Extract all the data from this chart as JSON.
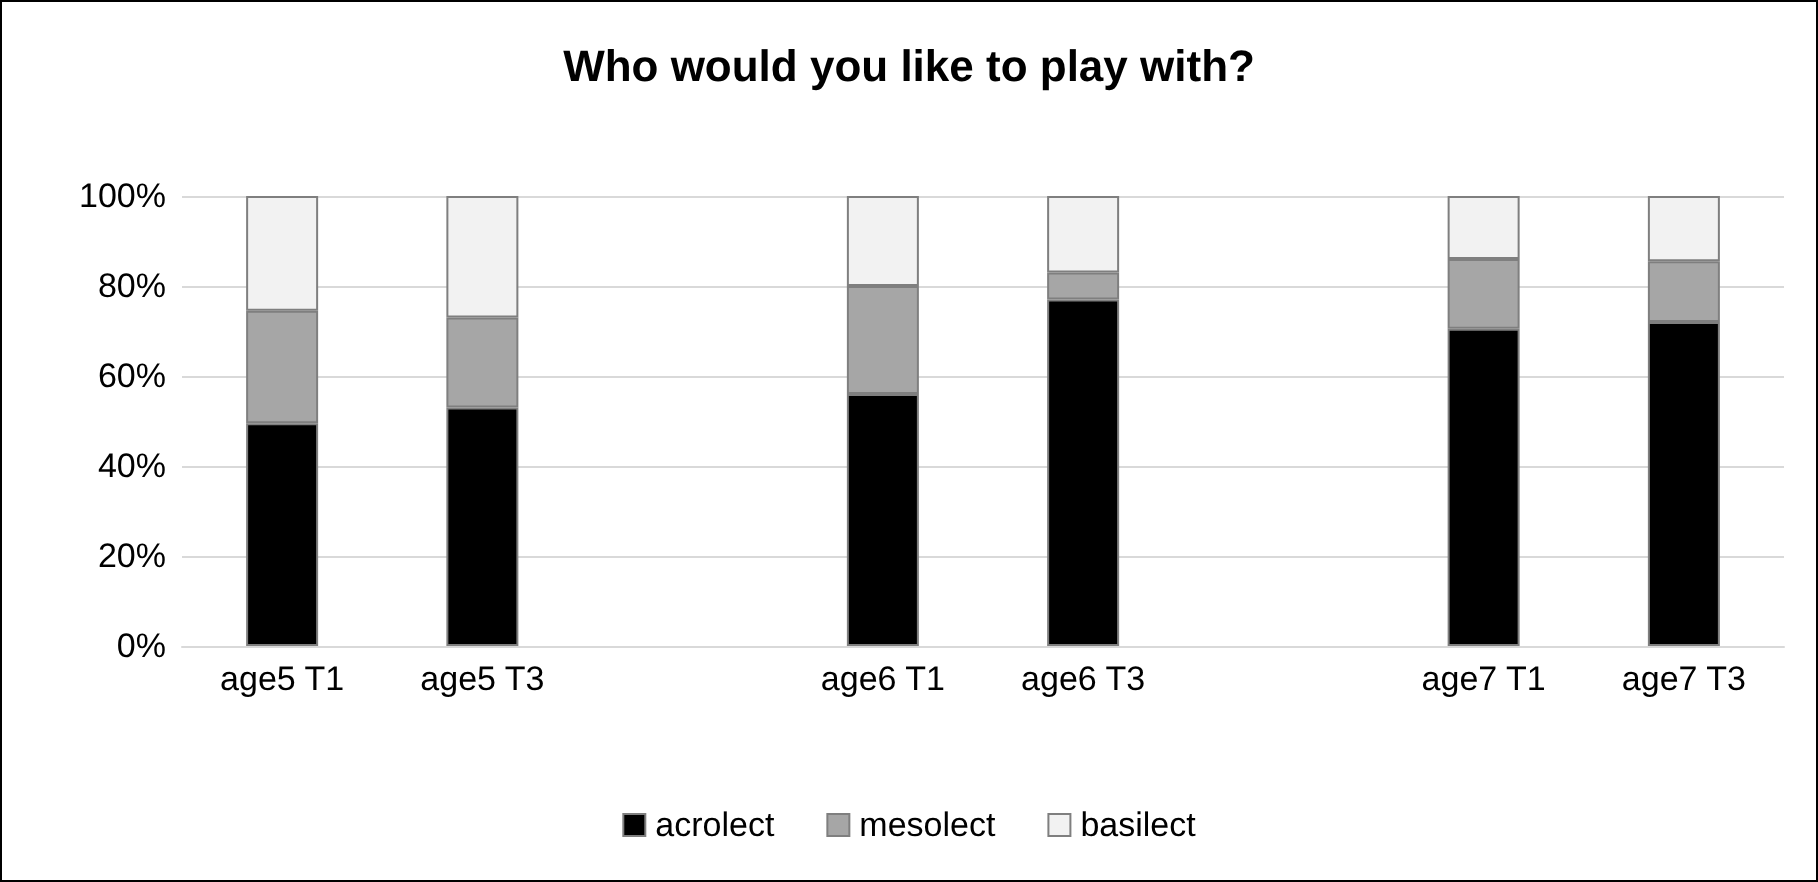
{
  "chart_data": {
    "type": "bar",
    "title": "Who would you like to play with?",
    "stacked": true,
    "categories": [
      "age5 T1",
      "age5 T3",
      null,
      "age6 T1",
      "age6 T3",
      null,
      "age7 T1",
      "age7 T3"
    ],
    "series": [
      {
        "name": "acrolect",
        "color": "#000000",
        "values": [
          49.5,
          53,
          null,
          56,
          77,
          null,
          70.5,
          72
        ]
      },
      {
        "name": "mesolect",
        "color": "#a6a6a6",
        "values": [
          25,
          20,
          null,
          24,
          6,
          null,
          15.5,
          13.5
        ]
      },
      {
        "name": "basilect",
        "color": "#f2f2f2",
        "values": [
          25.5,
          27,
          null,
          20,
          17,
          null,
          14,
          14.5
        ]
      }
    ],
    "ylim": [
      0,
      100
    ],
    "yticks": [
      {
        "value": 0,
        "label": "0%"
      },
      {
        "value": 20,
        "label": "20%"
      },
      {
        "value": 40,
        "label": "40%"
      },
      {
        "value": 60,
        "label": "60%"
      },
      {
        "value": 80,
        "label": "80%"
      },
      {
        "value": 100,
        "label": "100%"
      }
    ],
    "grid": "y",
    "legend": "bottom"
  }
}
